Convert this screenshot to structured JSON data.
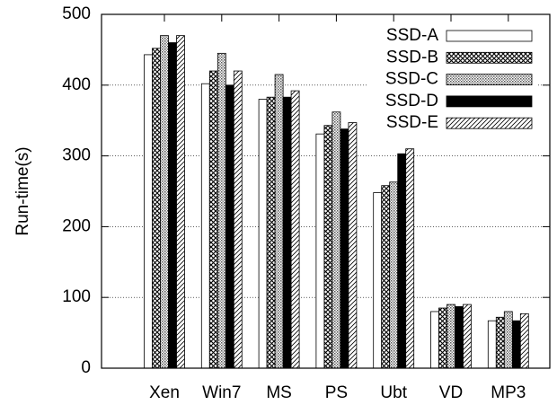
{
  "chart_data": {
    "type": "bar",
    "ylabel": "Run-time(s)",
    "categories": [
      "Xen",
      "Win7",
      "MS",
      "PS",
      "Ubt",
      "VD",
      "MP3"
    ],
    "series": [
      {
        "name": "SSD-A",
        "color": "#ffffff",
        "pattern": "none",
        "values": [
          443,
          402,
          380,
          331,
          248,
          80,
          67
        ]
      },
      {
        "name": "SSD-B",
        "color": "#000000",
        "pattern": "crosshatch",
        "values": [
          452,
          420,
          383,
          343,
          258,
          85,
          72
        ]
      },
      {
        "name": "SSD-C",
        "color": "#000000",
        "pattern": "dots",
        "values": [
          470,
          445,
          415,
          362,
          263,
          90,
          80
        ]
      },
      {
        "name": "SSD-D",
        "color": "#000000",
        "pattern": "solid",
        "values": [
          460,
          400,
          383,
          338,
          303,
          87,
          67
        ]
      },
      {
        "name": "SSD-E",
        "color": "#000000",
        "pattern": "diagonal",
        "values": [
          470,
          420,
          392,
          347,
          310,
          90,
          77
        ]
      }
    ],
    "ylim": [
      0,
      500
    ],
    "yticks": [
      0,
      100,
      200,
      300,
      400,
      500
    ],
    "grid": true,
    "legend": "top-right"
  }
}
